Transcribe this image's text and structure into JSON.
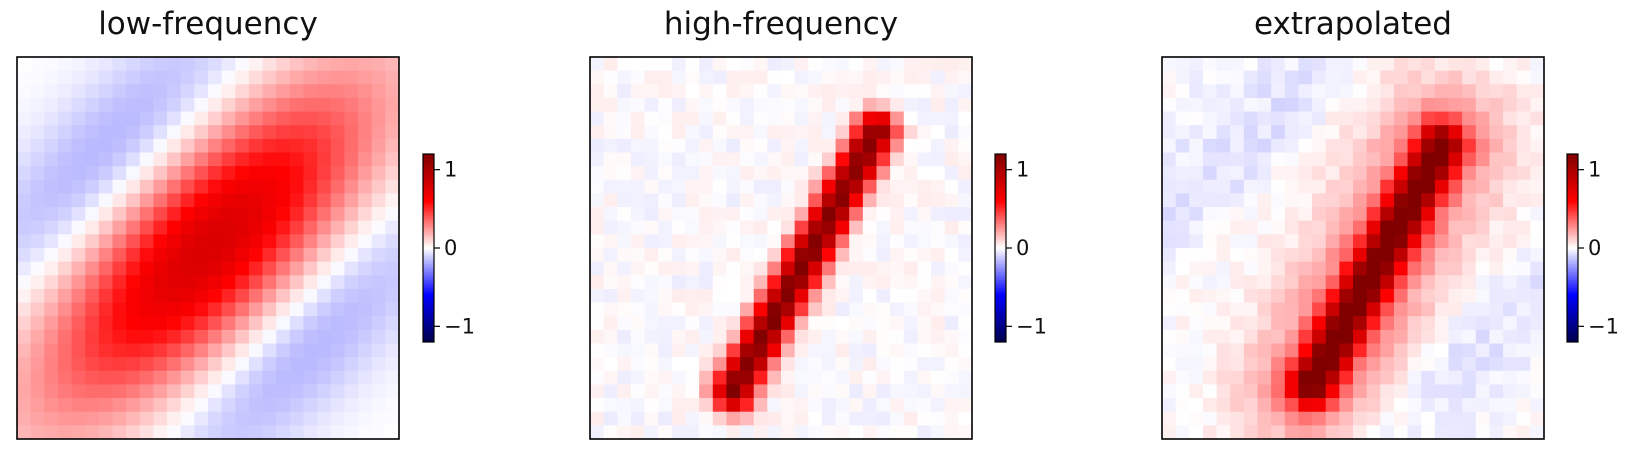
{
  "chart_data": [
    {
      "type": "heatmap",
      "title": "low-frequency",
      "grid_size": [
        28,
        28
      ],
      "colormap": "seismic",
      "vmin": -1.2,
      "vmax": 1.2,
      "colorbar_ticks": [
        1,
        0,
        -1
      ],
      "colorbar_tick_labels": [
        "1",
        "0",
        "−1"
      ],
      "pattern": "broad smooth positive diagonal lobe (peak ≈0.7) from lower-left to upper-right, flanked by two weak negative lobes (≈−0.2) at upper-left and lower-right"
    },
    {
      "type": "heatmap",
      "title": "high-frequency",
      "grid_size": [
        28,
        28
      ],
      "colormap": "seismic",
      "vmin": -1.2,
      "vmax": 1.2,
      "colorbar_ticks": [
        1,
        0,
        -1
      ],
      "colorbar_tick_labels": [
        "1",
        "0",
        "−1"
      ],
      "pattern": "sharp narrow diagonal stroke shaped like the digit 1 (peak ≈1.15) from (row 5, col 20) to (row 24, col 10), faint noisy background near 0"
    },
    {
      "type": "heatmap",
      "title": "extrapolated",
      "grid_size": [
        28,
        28
      ],
      "colormap": "seismic",
      "vmin": -1.2,
      "vmax": 1.2,
      "colorbar_ticks": [
        1,
        0,
        -1
      ],
      "colorbar_tick_labels": [
        "1",
        "0",
        "−1"
      ],
      "pattern": "diagonal digit-1 stroke (peak ≈1.1) with a wide positive halo (≈0.3) and weak negative lobes at upper-left and lower-right"
    }
  ],
  "colors": {
    "cmap_dark_blue": "#00004c",
    "cmap_blue": "#0000ff",
    "cmap_white": "#ffffff",
    "cmap_red": "#ff0000",
    "cmap_dark_red": "#800000",
    "frame": "#000000"
  }
}
